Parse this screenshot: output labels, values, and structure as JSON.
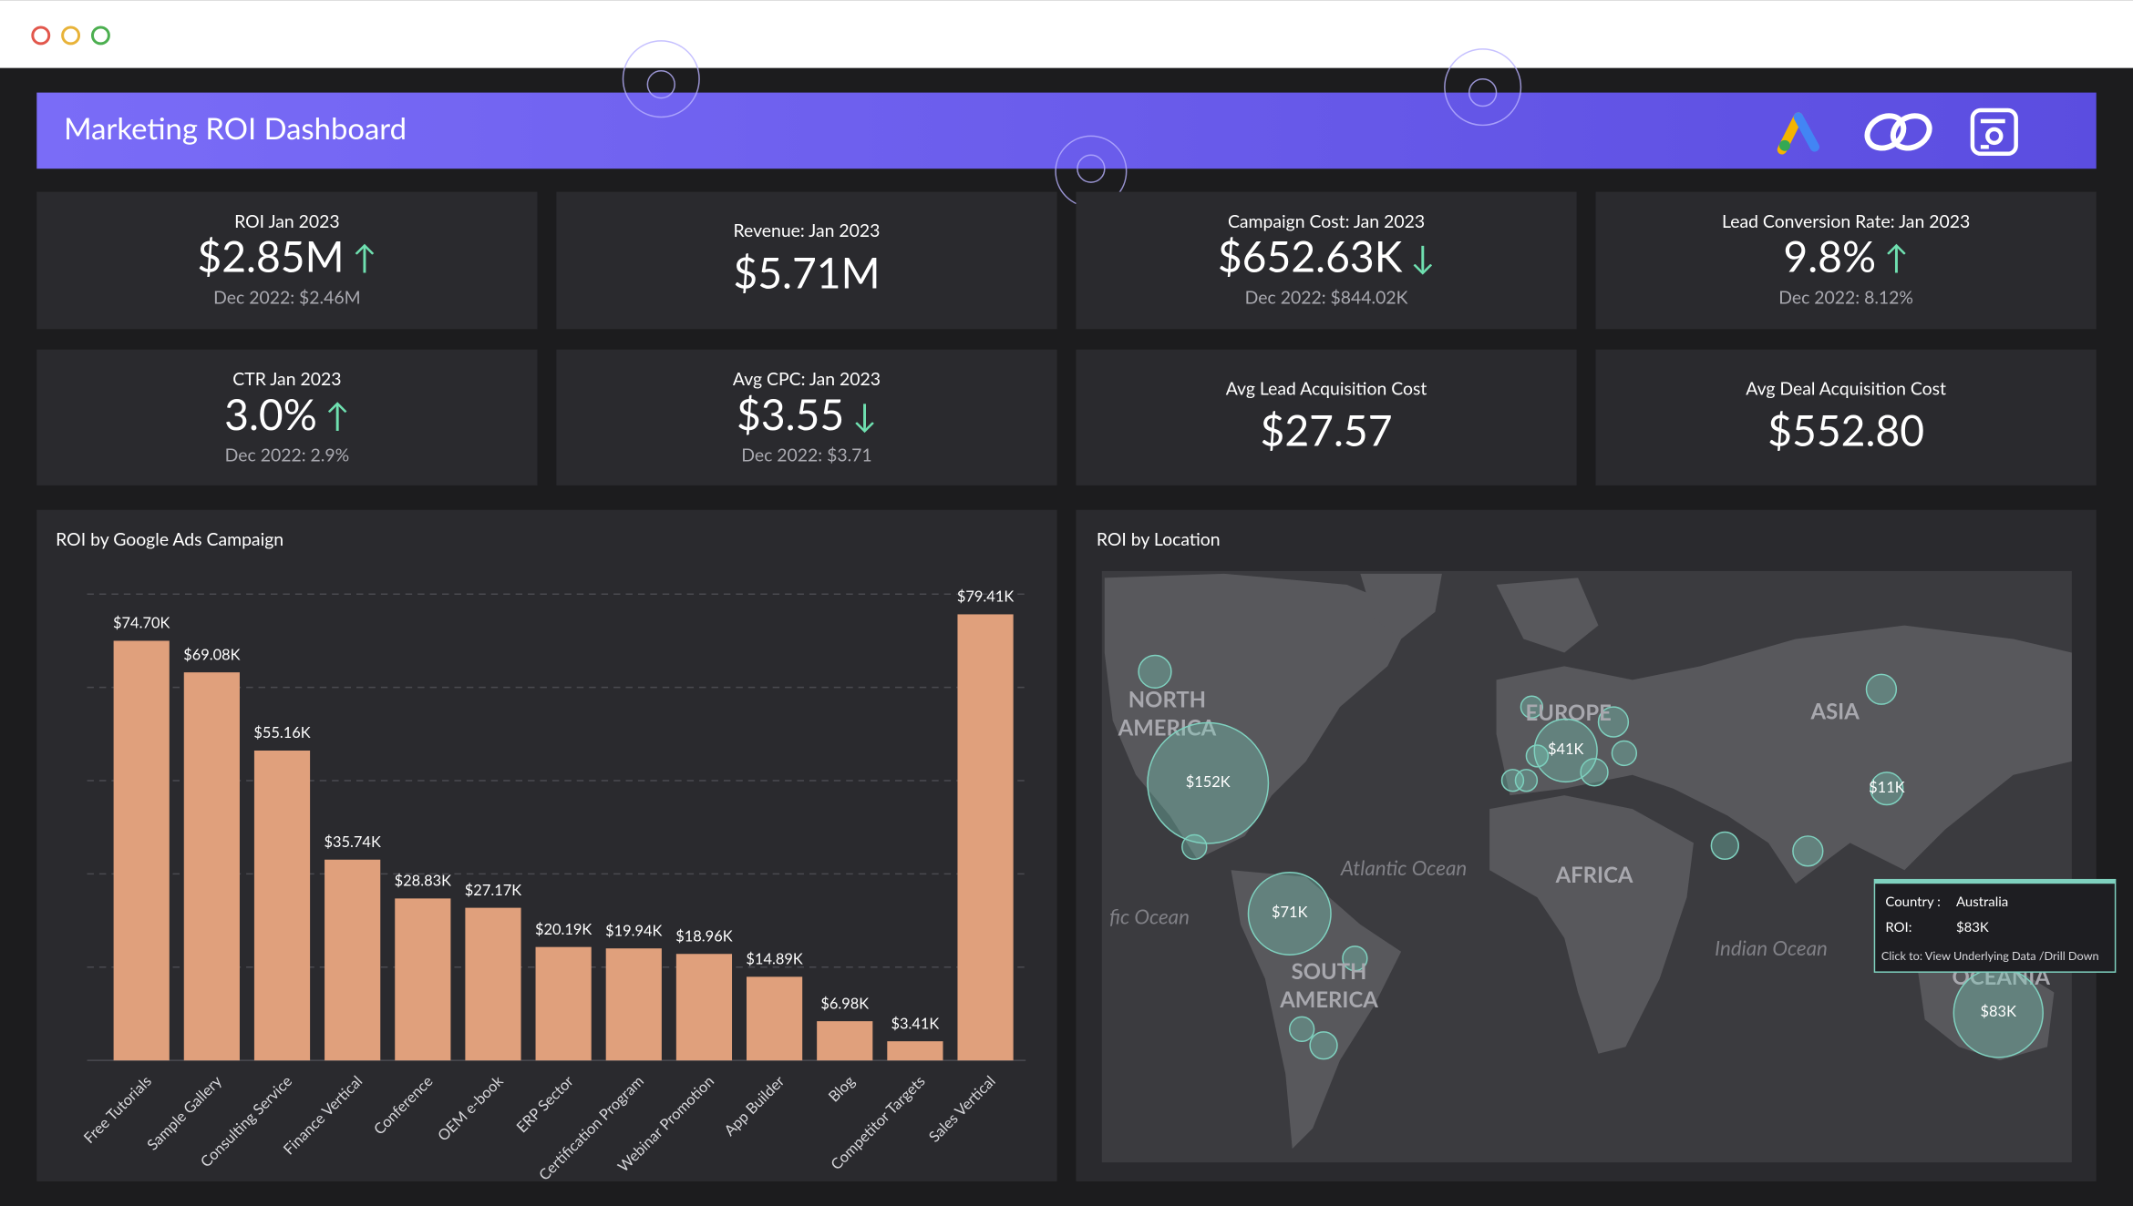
{
  "header": {
    "title": "Marketing ROI Dashboard"
  },
  "kpis": [
    {
      "label": "ROI Jan 2023",
      "value": "$2.85M",
      "arrow": "↑",
      "compare": "Dec 2022: $2.46M"
    },
    {
      "label": "Revenue: Jan 2023",
      "value": "$5.71M"
    },
    {
      "label": "Campaign Cost: Jan 2023",
      "value": "$652.63K",
      "arrow": "↓",
      "compare": "Dec 2022: $844.02K"
    },
    {
      "label": "Lead Conversion Rate: Jan 2023",
      "value": "9.8%",
      "arrow": "↑",
      "compare": "Dec 2022: 8.12%"
    },
    {
      "label": "CTR Jan 2023",
      "value": "3.0%",
      "arrow": "↑",
      "compare": "Dec 2022: 2.9%"
    },
    {
      "label": "Avg CPC: Jan 2023",
      "value": "$3.55",
      "arrow": "↓",
      "compare": "Dec 2022: $3.71"
    },
    {
      "label": "Avg Lead Acquisition Cost",
      "value": "$27.57"
    },
    {
      "label": "Avg Deal Acquisition Cost",
      "value": "$552.80"
    }
  ],
  "chart_data": {
    "type": "bar",
    "title": "ROI by Google Ads Campaign",
    "categories": [
      "Free Tutorials",
      "Sample Gallery",
      "Consulting Service",
      "Finance Vertical",
      "Conference",
      "OEM e-book",
      "ERP Sector",
      "Certification Program",
      "Webinar Promotion",
      "App Builder",
      "Blog",
      "Competitor Targets",
      "Sales Vertical"
    ],
    "values": [
      74.7,
      69.08,
      55.16,
      35.74,
      28.83,
      27.17,
      20.19,
      19.94,
      18.96,
      14.89,
      6.98,
      3.41,
      79.41
    ],
    "value_labels": [
      "$74.70K",
      "$69.08K",
      "$55.16K",
      "$35.74K",
      "$28.83K",
      "$27.17K",
      "$20.19K",
      "$19.94K",
      "$18.96K",
      "$14.89K",
      "$6.98K",
      "$3.41K",
      "$79.41K"
    ],
    "color": "#e0a07c",
    "ylim": [
      0,
      83
    ],
    "yticks": [
      0,
      16.6,
      33.2,
      49.8,
      66.4,
      83
    ],
    "grid": true
  },
  "map": {
    "title": "ROI by Location",
    "regions": [
      "NORTH",
      "AMERICA",
      "EUROPE",
      "ASIA",
      "AFRICA",
      "SOUTH",
      "AMERICA",
      "OCEANIA"
    ],
    "oceans": [
      "Atlantic Ocean",
      "fic Ocean",
      "Indian Ocean"
    ],
    "bubbles": [
      {
        "value": 152,
        "label": "$152K"
      },
      {
        "value": 41,
        "label": "$41K"
      },
      {
        "value": 11,
        "label": "$11K"
      },
      {
        "value": 71,
        "label": "$71K"
      },
      {
        "value": 83,
        "label": "$83K"
      }
    ],
    "tooltip": {
      "country_label": "Country :",
      "country": "Australia",
      "roi_label": "ROI:",
      "roi": "$83K",
      "note": "Click to: View Underlying Data /Drill Down"
    }
  }
}
